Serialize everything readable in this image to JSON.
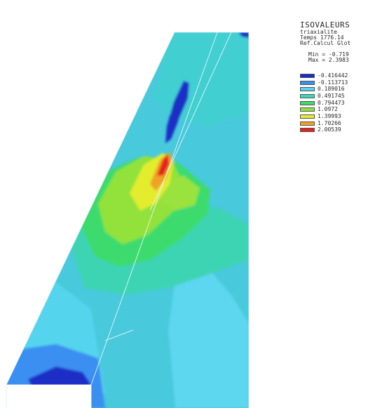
{
  "legend": {
    "title": "ISOVALEURS",
    "lines": [
      "triaxialite",
      "Temps 1776.14",
      "Ref.Calcul Glot"
    ],
    "min_label": "Min = -0.719",
    "max_label": "Max = 2.3983",
    "levels": [
      {
        "value": "-0.416442",
        "color": "#1c2ac8"
      },
      {
        "value": "-0.113713",
        "color": "#3a8ff0"
      },
      {
        "value": "0.189016",
        "color": "#55d5ee"
      },
      {
        "value": "0.491745",
        "color": "#3dd9b3"
      },
      {
        "value": "0.794473",
        "color": "#3ddb6a"
      },
      {
        "value": "1.0972",
        "color": "#8fe23a"
      },
      {
        "value": "1.39993",
        "color": "#e7ec2e"
      },
      {
        "value": "1.70266",
        "color": "#f0a228"
      },
      {
        "value": "2.00539",
        "color": "#e4241c"
      }
    ]
  },
  "colors": {
    "background": "#ffffff",
    "mesh_lines": "#e6f4f8"
  }
}
